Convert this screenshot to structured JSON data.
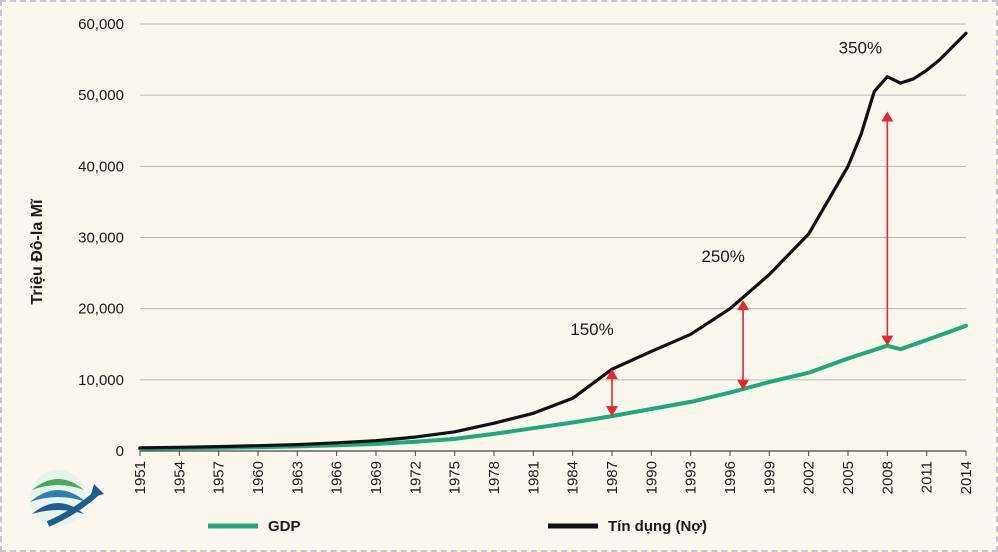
{
  "chart_data": {
    "type": "line",
    "title": "",
    "xlabel": "",
    "ylabel": "Triệu Đô-la Mĩ",
    "ylim": [
      0,
      60000
    ],
    "yticks": [
      "0",
      "10,000",
      "20,000",
      "30,000",
      "40,000",
      "50,000",
      "60,000"
    ],
    "ytick_values": [
      0,
      10000,
      20000,
      30000,
      40000,
      50000,
      60000
    ],
    "xlim": [
      1951,
      2014
    ],
    "xticks": [
      "1951",
      "1954",
      "1957",
      "1960",
      "1963",
      "1966",
      "1969",
      "1972",
      "1975",
      "1978",
      "1981",
      "1984",
      "1987",
      "1990",
      "1993",
      "1996",
      "1999",
      "2002",
      "2005",
      "2008",
      "2011",
      "2014"
    ],
    "grid": true,
    "legend_position": "bottom",
    "series": [
      {
        "name": "GDP",
        "color": "#1fa97a",
        "x": [
          1951,
          1954,
          1957,
          1960,
          1963,
          1966,
          1969,
          1972,
          1975,
          1978,
          1981,
          1984,
          1987,
          1990,
          1993,
          1996,
          1999,
          2002,
          2005,
          2008,
          2009,
          2011,
          2014
        ],
        "values": [
          340,
          390,
          460,
          540,
          640,
          800,
          1000,
          1300,
          1700,
          2400,
          3200,
          4000,
          4900,
          5900,
          6900,
          8200,
          9700,
          11000,
          13000,
          14800,
          14300,
          15600,
          17600
        ]
      },
      {
        "name": "Tín dụng (Nợ)",
        "color": "#111111",
        "x": [
          1951,
          1954,
          1957,
          1960,
          1963,
          1966,
          1969,
          1972,
          1975,
          1978,
          1981,
          1984,
          1987,
          1990,
          1993,
          1996,
          1999,
          2002,
          2005,
          2006,
          2007,
          2008,
          2009,
          2010,
          2011,
          2012,
          2014
        ],
        "values": [
          450,
          520,
          620,
          750,
          900,
          1150,
          1450,
          1950,
          2700,
          3900,
          5300,
          7400,
          11500,
          14000,
          16400,
          20000,
          24800,
          30500,
          40000,
          44500,
          50500,
          52600,
          51700,
          52300,
          53500,
          55000,
          58700
        ]
      }
    ],
    "annotations": [
      {
        "text": "150%",
        "x": 1987,
        "y_bottom": 4900,
        "y_top": 11500
      },
      {
        "text": "250%",
        "x": 1997,
        "y_bottom": 8600,
        "y_top": 21200
      },
      {
        "text": "350%",
        "x": 2008,
        "y_bottom": 14800,
        "y_top": 47700
      }
    ],
    "arrow_color": "#e8262b"
  }
}
